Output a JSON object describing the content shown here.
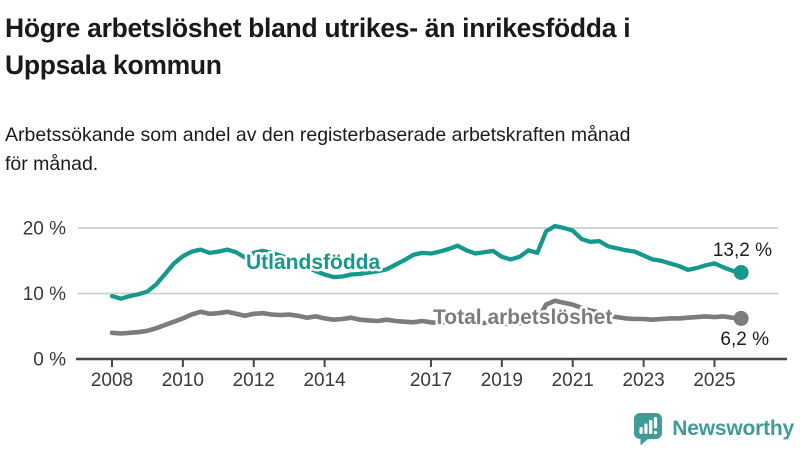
{
  "header": {
    "title_lines": [
      "Högre arbetslöshet bland utrikes- än inrikesfödda i",
      "Uppsala kommun"
    ],
    "subtitle_lines": [
      "Arbetssökande som andel av den registerbaserade arbetskraften månad",
      "för månad."
    ]
  },
  "chart_data": {
    "type": "line",
    "x_start_year": 2008,
    "points_per_year": 4,
    "x_tick_labels": [
      "2008",
      "2010",
      "2012",
      "2014",
      "2017",
      "2019",
      "2021",
      "2023",
      "2025"
    ],
    "y_tick_labels": [
      "0 %",
      "10 %",
      "20 %"
    ],
    "ylim": [
      0,
      22
    ],
    "grid": "horizontal",
    "legend_position": "inline-labels",
    "series": [
      {
        "name": "Utlandsfödda",
        "color": "#16998d",
        "end_label": "13,2 %",
        "end_value": 13.2,
        "values": [
          9.6,
          9.2,
          9.6,
          9.9,
          10.3,
          11.4,
          13.0,
          14.6,
          15.7,
          16.4,
          16.7,
          16.2,
          16.4,
          16.7,
          16.3,
          15.5,
          16.2,
          16.5,
          16.2,
          15.8,
          15.3,
          14.6,
          14.0,
          13.4,
          12.9,
          12.5,
          12.6,
          12.9,
          13.0,
          13.2,
          13.4,
          13.7,
          14.4,
          15.1,
          15.9,
          16.2,
          16.1,
          16.4,
          16.8,
          17.3,
          16.6,
          16.1,
          16.3,
          16.5,
          15.6,
          15.2,
          15.6,
          16.6,
          16.2,
          19.5,
          20.3,
          20.0,
          19.6,
          18.3,
          17.9,
          18.0,
          17.2,
          16.9,
          16.6,
          16.4,
          15.8,
          15.2,
          15.0,
          14.6,
          14.2,
          13.6,
          13.9,
          14.3,
          14.6,
          14.0,
          13.5,
          13.2
        ]
      },
      {
        "name": "Total arbetslöshet",
        "color": "#7c7c7c",
        "end_label": "6,2 %",
        "end_value": 6.2,
        "values": [
          4.0,
          3.9,
          4.0,
          4.1,
          4.3,
          4.7,
          5.2,
          5.7,
          6.2,
          6.8,
          7.2,
          6.9,
          7.0,
          7.2,
          6.9,
          6.6,
          6.9,
          7.0,
          6.8,
          6.7,
          6.8,
          6.6,
          6.3,
          6.5,
          6.2,
          6.0,
          6.1,
          6.3,
          6.0,
          5.9,
          5.8,
          6.0,
          5.8,
          5.7,
          5.6,
          5.8,
          5.6,
          5.5,
          5.7,
          5.9,
          5.6,
          5.4,
          5.5,
          5.6,
          5.4,
          5.3,
          5.5,
          5.7,
          5.9,
          8.3,
          8.9,
          8.6,
          8.3,
          7.8,
          7.4,
          7.1,
          6.6,
          6.4,
          6.2,
          6.1,
          6.1,
          6.0,
          6.1,
          6.2,
          6.2,
          6.3,
          6.4,
          6.5,
          6.4,
          6.5,
          6.3,
          6.2
        ]
      }
    ]
  },
  "branding": {
    "logo_text": "Newsworthy",
    "logo_color": "#3f9c98",
    "logo_icon": "bar-chart-speech-bubble"
  }
}
